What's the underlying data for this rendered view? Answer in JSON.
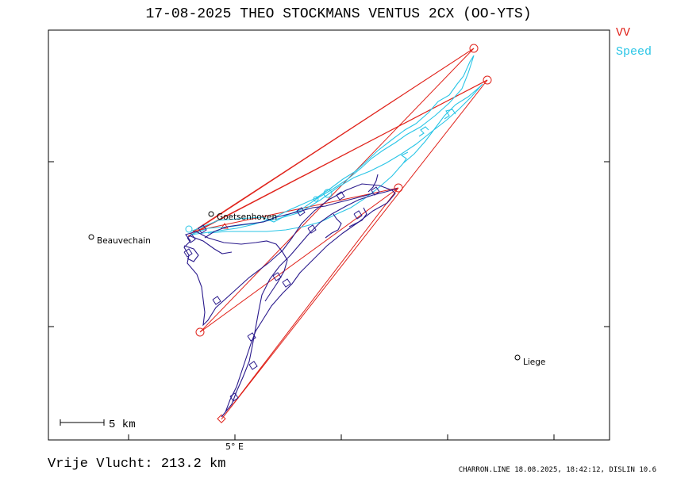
{
  "title": "17-08-2025   THEO STOCKMANS   VENTUS 2CX (OO-YTS)",
  "legend": {
    "vv": {
      "label": "VV",
      "color": "#e0241c"
    },
    "speed": {
      "label": "Speed",
      "color": "#29c5e6"
    }
  },
  "track_color": "#2a1a8c",
  "places": [
    {
      "name": "Beauvechain"
    },
    {
      "name": "Goetsenhoven"
    },
    {
      "name": "Liege"
    }
  ],
  "scale_bar": {
    "label": "5  km"
  },
  "x_axis": {
    "label": "5° E"
  },
  "footer": {
    "distance": "Vrije Vlucht:  213.2 km",
    "credit": "CHARRON.LINE 18.08.2025, 18:42:12, DISLIN 10.6"
  }
}
